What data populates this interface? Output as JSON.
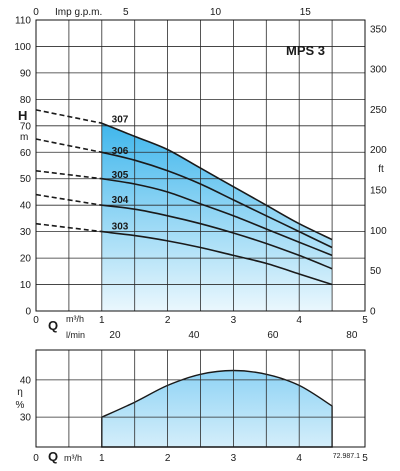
{
  "chart_data": [
    {
      "type": "line",
      "title": "MPS 3",
      "xlabel": "Q",
      "x_units": [
        "m³/h",
        "l/min"
      ],
      "top_axis_label": "Imp g.p.m.",
      "ylabel": "H",
      "y_unit": "m",
      "right_axis_unit": "ft",
      "xlim": [
        0,
        5
      ],
      "ylim": [
        0,
        110
      ],
      "grid": true,
      "operating_range": [
        1,
        4.5
      ],
      "x_ticks": [
        0,
        1,
        2,
        3,
        4,
        5
      ],
      "x_ticks_lmin": [
        20,
        40,
        60,
        80
      ],
      "x_ticks_gpm": [
        0,
        5,
        10,
        15
      ],
      "y_ticks": [
        0,
        10,
        20,
        30,
        40,
        50,
        60,
        70,
        80,
        90,
        100,
        110
      ],
      "y_ticks_ft": [
        0,
        50,
        100,
        150,
        200,
        250,
        300,
        350
      ],
      "series": [
        {
          "name": "307",
          "x": [
            0,
            1,
            1.5,
            2,
            2.5,
            3,
            3.5,
            4,
            4.5
          ],
          "y": [
            76,
            71,
            66,
            61,
            54,
            47,
            40,
            33,
            27
          ]
        },
        {
          "name": "306",
          "x": [
            0,
            1,
            1.5,
            2,
            2.5,
            3,
            3.5,
            4,
            4.5
          ],
          "y": [
            65,
            60,
            57,
            53,
            48,
            42,
            36,
            30,
            24
          ]
        },
        {
          "name": "305",
          "x": [
            0,
            1,
            1.5,
            2,
            2.5,
            3,
            3.5,
            4,
            4.5
          ],
          "y": [
            53,
            50,
            48,
            45,
            40.5,
            36,
            31,
            26,
            21
          ]
        },
        {
          "name": "304",
          "x": [
            0,
            1,
            1.5,
            2,
            2.5,
            3,
            3.5,
            4,
            4.5
          ],
          "y": [
            44,
            40,
            38.5,
            36,
            33,
            29.5,
            25.5,
            21,
            16
          ]
        },
        {
          "name": "303",
          "x": [
            0,
            1,
            1.5,
            2,
            2.5,
            3,
            3.5,
            4,
            4.5
          ],
          "y": [
            33,
            30,
            28.5,
            26.5,
            24,
            21,
            18,
            14,
            10
          ]
        }
      ]
    },
    {
      "type": "area",
      "xlabel": "Q",
      "x_unit": "m³/h",
      "ylabel": "η",
      "y_unit": "%",
      "xlim": [
        0,
        5
      ],
      "ylim": [
        22,
        48
      ],
      "grid": true,
      "x_ticks": [
        0,
        1,
        2,
        3,
        4,
        5
      ],
      "y_ticks": [
        30,
        40
      ],
      "x": [
        1,
        1.5,
        2,
        2.5,
        3,
        3.5,
        4,
        4.5
      ],
      "y": [
        30,
        34,
        38.5,
        41.5,
        42.5,
        41.5,
        38.5,
        33
      ],
      "code": "72.987.1"
    }
  ]
}
